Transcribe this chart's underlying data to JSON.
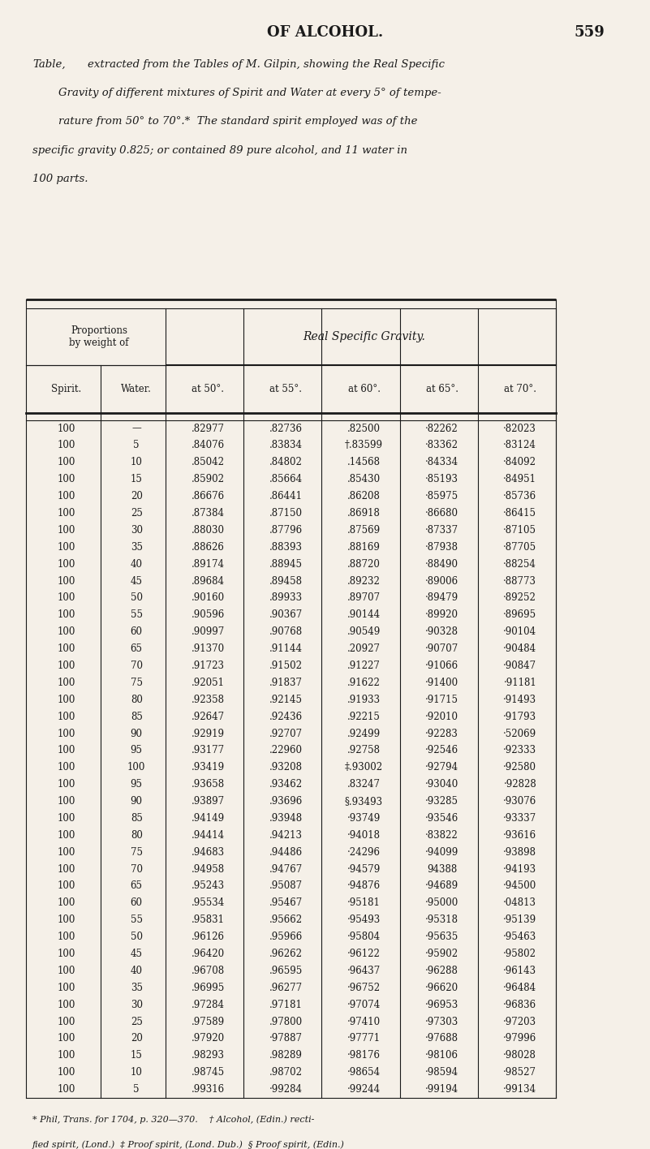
{
  "page_header": "OF ALCOHOL.",
  "page_number": "559",
  "caption_lines": [
    "Table, extracted from the Tables of M. Gilpin, showing the Real Specific",
    "Gravity of different mixtures of Spirit and Water at every 5° of tempe-",
    "rature from 50° to 70°.*  The standard spirit employed was of the",
    "specific gravity 0.825; or contained 89 pure alcohol, and 11 water in",
    "100 parts."
  ],
  "col_headers_top": [
    "Proportions\nby weight of",
    "Real Specific Gravity."
  ],
  "col_headers_sub": [
    "Spirit.",
    "Water.",
    "at 50°.",
    "at 55°.",
    "at 60°.",
    "at 65°.",
    "at 70°."
  ],
  "rows": [
    [
      "100",
      "—",
      ".82977",
      ".82736",
      ".82500",
      "·82262",
      "·82023"
    ],
    [
      "100",
      "5",
      ".84076",
      ".83834",
      "†.83599",
      "·83362",
      "·83124"
    ],
    [
      "100",
      "10",
      ".85042",
      ".84802",
      ".14568",
      "·84334",
      "·84092"
    ],
    [
      "100",
      "15",
      ".85902",
      ".85664",
      ".85430",
      "·85193",
      "·84951"
    ],
    [
      "100",
      "20",
      ".86676",
      ".86441",
      ".86208",
      "·85975",
      "·85736"
    ],
    [
      "100",
      "25",
      ".87384",
      ".87150",
      ".86918",
      "·86680",
      "·86415"
    ],
    [
      "100",
      "30",
      ".88030",
      ".87796",
      ".87569",
      "·87337",
      "·87105"
    ],
    [
      "100",
      "35",
      ".88626",
      ".88393",
      ".88169",
      "·87938",
      "·87705"
    ],
    [
      "100",
      "40",
      ".89174",
      ".88945",
      ".88720",
      "·88490",
      "·88254"
    ],
    [
      "100",
      "45",
      ".89684",
      ".89458",
      ".89232",
      "·89006",
      "·88773"
    ],
    [
      "100",
      "50",
      ".90160",
      ".89933",
      ".89707",
      "·89479",
      "·89252"
    ],
    [
      "100",
      "55",
      ".90596",
      ".90367",
      ".90144",
      "·89920",
      "·89695"
    ],
    [
      "100",
      "60",
      ".90997",
      ".90768",
      ".90549",
      "·90328",
      "·90104"
    ],
    [
      "100",
      "65",
      ".91370",
      ".91144",
      ".20927",
      "·90707",
      "·90484"
    ],
    [
      "100",
      "70",
      ".91723",
      ".91502",
      ".91227",
      "·91066",
      "·90847"
    ],
    [
      "100",
      "75",
      ".92051",
      ".91837",
      ".91622",
      "·91400",
      "·91181"
    ],
    [
      "100",
      "80",
      ".92358",
      ".92145",
      ".91933",
      "·91715",
      "·91493"
    ],
    [
      "100",
      "85",
      ".92647",
      ".92436",
      ".92215",
      "·92010",
      "·91793"
    ],
    [
      "100",
      "90",
      ".92919",
      ".92707",
      ".92499",
      "·92283",
      "·52069"
    ],
    [
      "100",
      "95",
      ".93177",
      ".22960",
      ".92758",
      "·92546",
      "·92333"
    ],
    [
      "100",
      "100",
      ".93419",
      ".93208",
      "‡.93002",
      "·92794",
      "·92580"
    ],
    [
      "100",
      "95",
      ".93658",
      ".93462",
      ".83247",
      "·93040",
      "·92828"
    ],
    [
      "100",
      "90",
      ".93897",
      ".93696",
      "§.93493",
      "·93285",
      "·93076"
    ],
    [
      "100",
      "85",
      ".94149",
      ".93948",
      "·93749",
      "·93546",
      "·93337"
    ],
    [
      "100",
      "80",
      ".94414",
      ".94213",
      "·94018",
      "·83822",
      "·93616"
    ],
    [
      "100",
      "75",
      ".94683",
      ".94486",
      "·24296",
      "·94099",
      "·93898"
    ],
    [
      "100",
      "70",
      ".94958",
      ".94767",
      "·94579",
      "94388",
      "·94193"
    ],
    [
      "100",
      "65",
      ".95243",
      ".95087",
      "·94876",
      "·94689",
      "·94500"
    ],
    [
      "100",
      "60",
      ".95534",
      ".95467",
      "·95181",
      "·95000",
      "·04813"
    ],
    [
      "100",
      "55",
      ".95831",
      ".95662",
      "·95493",
      "·95318",
      "·95139"
    ],
    [
      "100",
      "50",
      ".96126",
      ".95966",
      "·95804",
      "·95635",
      "·95463"
    ],
    [
      "100",
      "45",
      ".96420",
      ".96262",
      "·96122",
      "·95902",
      "·95802"
    ],
    [
      "100",
      "40",
      ".96708",
      ".96595",
      "·96437",
      "·96288",
      "·96143"
    ],
    [
      "100",
      "35",
      ".96995",
      ".96277",
      "·96752",
      "·96620",
      "·96484"
    ],
    [
      "100",
      "30",
      ".97284",
      ".97181",
      "·97074",
      "·96953",
      "·96836"
    ],
    [
      "100",
      "25",
      ".97589",
      ".97800",
      "·97410",
      "·97303",
      "·97203"
    ],
    [
      "100",
      "20",
      ".97920",
      "·97887",
      "·97771",
      "·97688",
      "·97996"
    ],
    [
      "100",
      "15",
      ".98293",
      ".98289",
      "·98176",
      "·98106",
      "·98028"
    ],
    [
      "100",
      "10",
      ".98745",
      ".98702",
      "·98654",
      "·98594",
      "·98527"
    ],
    [
      "100",
      "5",
      ".99316",
      "·99284",
      "·99244",
      "·99194",
      "·99134"
    ]
  ],
  "footnote_lines": [
    "* Phil, Trans. for 1704, p. 320—370.    † Alcohol, (Edin.) recti-",
    "fied spirit, (Lond.)  ‡ Proof spirit, (Lond. Dub.)  § Proof spirit, (Edin.)"
  ],
  "bg_color": "#f5f0e8",
  "text_color": "#1a1a1a",
  "line_color": "#1a1a1a"
}
